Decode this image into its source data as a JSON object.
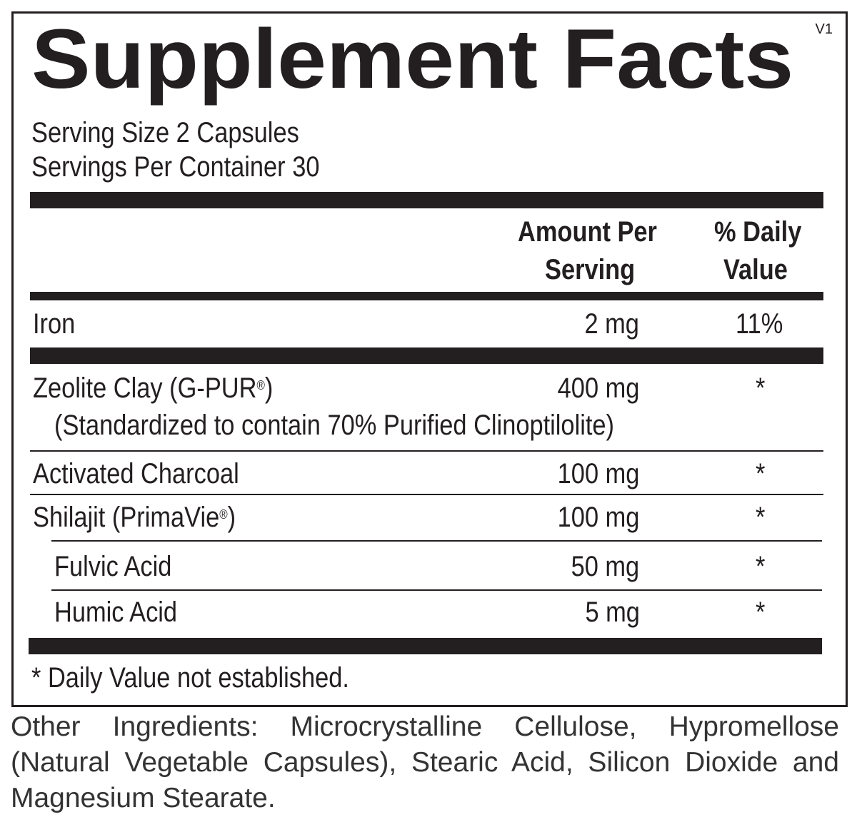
{
  "label": {
    "title": "Supplement Facts",
    "version": "V1",
    "serving_size": "Serving Size 2 Capsules",
    "servings_per_container": "Servings Per Container 30",
    "header": {
      "amount_line1": "Amount Per",
      "amount_line2": "Serving",
      "dv_line1": "% Daily",
      "dv_line2": "Value"
    },
    "rows": [
      {
        "name": "Iron",
        "amount": "2 mg",
        "dv": "11%"
      },
      {
        "name": "Zeolite Clay (G-PUR",
        "reg": "®",
        "name_end": ")",
        "sub": "(Standardized to contain 70% Purified Clinoptilolite)",
        "amount": "400 mg",
        "dv": "*"
      },
      {
        "name": "Activated Charcoal",
        "amount": "100 mg",
        "dv": "*"
      },
      {
        "name": "Shilajit (PrimaVie",
        "reg": "®",
        "name_end": ")",
        "amount": "100 mg",
        "dv": "*"
      },
      {
        "name": "Fulvic Acid",
        "amount": "50 mg",
        "dv": "*"
      },
      {
        "name": "Humic Acid",
        "amount": "5 mg",
        "dv": "*"
      }
    ],
    "footnote": "* Daily Value not established."
  },
  "other_ingredients": "Other Ingredients: Microcrystalline Cellulose, Hypromellose (Natural Vegetable Capsules), Stearic Acid, Silicon Dioxide and Magnesium Stearate."
}
